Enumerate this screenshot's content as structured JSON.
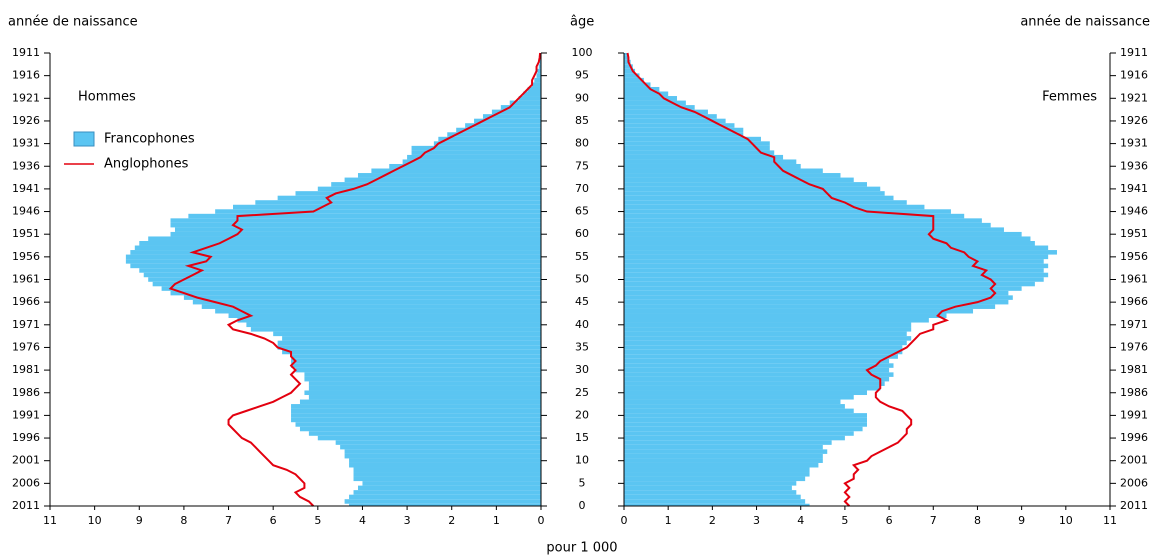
{
  "age_axis": {
    "title": "âge",
    "ticks": [
      0,
      5,
      10,
      15,
      20,
      25,
      30,
      35,
      40,
      45,
      50,
      55,
      60,
      65,
      70,
      75,
      80,
      85,
      90,
      95,
      100
    ]
  },
  "x_axis_title": "pour 1 000",
  "chart_data": [
    {
      "type": "pyramid",
      "direction": "left",
      "panel_label": "Hommes",
      "y_axis_title": "année de naissance",
      "legend": true,
      "xlim": [
        0,
        11
      ],
      "xticks": [
        0,
        1,
        2,
        3,
        4,
        5,
        6,
        7,
        8,
        9,
        10,
        11
      ],
      "ylim": [
        0,
        100
      ],
      "yticks": [
        {
          "value": 0,
          "label": "2011"
        },
        {
          "value": 5,
          "label": "2006"
        },
        {
          "value": 10,
          "label": "2001"
        },
        {
          "value": 15,
          "label": "1996"
        },
        {
          "value": 20,
          "label": "1991"
        },
        {
          "value": 25,
          "label": "1986"
        },
        {
          "value": 30,
          "label": "1981"
        },
        {
          "value": 35,
          "label": "1976"
        },
        {
          "value": 40,
          "label": "1971"
        },
        {
          "value": 45,
          "label": "1966"
        },
        {
          "value": 50,
          "label": "1961"
        },
        {
          "value": 55,
          "label": "1956"
        },
        {
          "value": 60,
          "label": "1951"
        },
        {
          "value": 65,
          "label": "1946"
        },
        {
          "value": 70,
          "label": "1941"
        },
        {
          "value": 75,
          "label": "1936"
        },
        {
          "value": 80,
          "label": "1931"
        },
        {
          "value": 85,
          "label": "1926"
        },
        {
          "value": 90,
          "label": "1921"
        },
        {
          "value": 95,
          "label": "1916"
        },
        {
          "value": 100,
          "label": "1911"
        }
      ],
      "y": [
        0,
        1,
        2,
        3,
        4,
        5,
        6,
        7,
        8,
        9,
        10,
        11,
        12,
        13,
        14,
        15,
        16,
        17,
        18,
        19,
        20,
        21,
        22,
        23,
        24,
        25,
        26,
        27,
        28,
        29,
        30,
        31,
        32,
        33,
        34,
        35,
        36,
        37,
        38,
        39,
        40,
        41,
        42,
        43,
        44,
        45,
        46,
        47,
        48,
        49,
        50,
        51,
        52,
        53,
        54,
        55,
        56,
        57,
        58,
        59,
        60,
        61,
        62,
        63,
        64,
        65,
        66,
        67,
        68,
        69,
        70,
        71,
        72,
        73,
        74,
        75,
        76,
        77,
        78,
        79,
        80,
        81,
        82,
        83,
        84,
        85,
        86,
        87,
        88,
        89,
        90,
        91,
        92,
        93,
        94,
        95,
        96,
        97,
        98,
        99,
        100
      ],
      "series": [
        {
          "name": "Francophones",
          "style": "area",
          "color": "#5bc5f2",
          "values": [
            4.3,
            4.4,
            4.3,
            4.2,
            4.1,
            4.0,
            4.2,
            4.2,
            4.2,
            4.3,
            4.3,
            4.4,
            4.4,
            4.5,
            4.6,
            5.0,
            5.2,
            5.4,
            5.5,
            5.6,
            5.6,
            5.6,
            5.6,
            5.4,
            5.2,
            5.3,
            5.2,
            5.2,
            5.3,
            5.3,
            5.5,
            5.6,
            5.6,
            5.6,
            5.8,
            5.9,
            5.9,
            5.8,
            6.0,
            6.5,
            6.6,
            6.8,
            7.0,
            7.3,
            7.6,
            7.8,
            8.0,
            8.3,
            8.5,
            8.7,
            8.8,
            8.9,
            9.0,
            9.2,
            9.3,
            9.3,
            9.2,
            9.1,
            9.0,
            8.8,
            8.3,
            8.2,
            8.3,
            8.3,
            7.9,
            7.3,
            6.9,
            6.4,
            5.9,
            5.5,
            5.0,
            4.7,
            4.4,
            4.1,
            3.8,
            3.4,
            3.1,
            3.0,
            2.9,
            2.9,
            2.4,
            2.3,
            2.1,
            1.9,
            1.7,
            1.5,
            1.3,
            1.1,
            0.9,
            0.7,
            0.5,
            0.4,
            0.3,
            0.2,
            0.15,
            0.1,
            0.08,
            0.05,
            0.03,
            0.02,
            0.02
          ]
        },
        {
          "name": "Anglophones",
          "style": "line",
          "color": "#e3000f",
          "values": [
            5.1,
            5.2,
            5.4,
            5.5,
            5.3,
            5.3,
            5.4,
            5.5,
            5.7,
            6.0,
            6.1,
            6.2,
            6.3,
            6.4,
            6.5,
            6.7,
            6.8,
            6.9,
            7.0,
            7.0,
            6.9,
            6.6,
            6.3,
            6.0,
            5.8,
            5.6,
            5.5,
            5.4,
            5.5,
            5.6,
            5.5,
            5.6,
            5.5,
            5.6,
            5.6,
            5.9,
            6.0,
            6.2,
            6.5,
            6.9,
            7.0,
            6.8,
            6.5,
            6.7,
            6.9,
            7.3,
            7.7,
            8.0,
            8.3,
            8.2,
            8.0,
            7.8,
            7.6,
            7.9,
            7.5,
            7.4,
            7.8,
            7.5,
            7.2,
            7.0,
            6.8,
            6.7,
            6.9,
            6.8,
            6.8,
            5.1,
            4.9,
            4.7,
            4.8,
            4.6,
            4.2,
            3.9,
            3.7,
            3.5,
            3.3,
            3.1,
            2.9,
            2.7,
            2.6,
            2.4,
            2.3,
            2.1,
            1.9,
            1.7,
            1.5,
            1.3,
            1.1,
            0.9,
            0.7,
            0.6,
            0.5,
            0.4,
            0.3,
            0.2,
            0.2,
            0.15,
            0.1,
            0.1,
            0.05,
            0.03,
            0.02
          ]
        }
      ]
    },
    {
      "type": "pyramid",
      "direction": "right",
      "panel_label": "Femmes",
      "y_axis_title": "année de naissance",
      "legend": false,
      "xlim": [
        0,
        11
      ],
      "xticks": [
        0,
        1,
        2,
        3,
        4,
        5,
        6,
        7,
        8,
        9,
        10,
        11
      ],
      "ylim": [
        0,
        100
      ],
      "yticks": [
        {
          "value": 0,
          "label": "2011"
        },
        {
          "value": 5,
          "label": "2006"
        },
        {
          "value": 10,
          "label": "2001"
        },
        {
          "value": 15,
          "label": "1996"
        },
        {
          "value": 20,
          "label": "1991"
        },
        {
          "value": 25,
          "label": "1986"
        },
        {
          "value": 30,
          "label": "1981"
        },
        {
          "value": 35,
          "label": "1976"
        },
        {
          "value": 40,
          "label": "1971"
        },
        {
          "value": 45,
          "label": "1966"
        },
        {
          "value": 50,
          "label": "1961"
        },
        {
          "value": 55,
          "label": "1956"
        },
        {
          "value": 60,
          "label": "1951"
        },
        {
          "value": 65,
          "label": "1946"
        },
        {
          "value": 70,
          "label": "1941"
        },
        {
          "value": 75,
          "label": "1936"
        },
        {
          "value": 80,
          "label": "1931"
        },
        {
          "value": 85,
          "label": "1926"
        },
        {
          "value": 90,
          "label": "1921"
        },
        {
          "value": 95,
          "label": "1916"
        },
        {
          "value": 100,
          "label": "1911"
        }
      ],
      "y": [
        0,
        1,
        2,
        3,
        4,
        5,
        6,
        7,
        8,
        9,
        10,
        11,
        12,
        13,
        14,
        15,
        16,
        17,
        18,
        19,
        20,
        21,
        22,
        23,
        24,
        25,
        26,
        27,
        28,
        29,
        30,
        31,
        32,
        33,
        34,
        35,
        36,
        37,
        38,
        39,
        40,
        41,
        42,
        43,
        44,
        45,
        46,
        47,
        48,
        49,
        50,
        51,
        52,
        53,
        54,
        55,
        56,
        57,
        58,
        59,
        60,
        61,
        62,
        63,
        64,
        65,
        66,
        67,
        68,
        69,
        70,
        71,
        72,
        73,
        74,
        75,
        76,
        77,
        78,
        79,
        80,
        81,
        82,
        83,
        84,
        85,
        86,
        87,
        88,
        89,
        90,
        91,
        92,
        93,
        94,
        95,
        96,
        97,
        98,
        99,
        100
      ],
      "series": [
        {
          "style": "area",
          "color": "#5bc5f2",
          "values": [
            4.2,
            4.1,
            4.0,
            3.9,
            3.8,
            3.9,
            4.1,
            4.2,
            4.2,
            4.4,
            4.5,
            4.5,
            4.6,
            4.5,
            4.7,
            5.0,
            5.2,
            5.4,
            5.5,
            5.5,
            5.5,
            5.2,
            5.0,
            4.9,
            5.2,
            5.5,
            5.8,
            5.9,
            6.0,
            6.1,
            6.0,
            6.1,
            6.0,
            6.2,
            6.3,
            6.3,
            6.4,
            6.5,
            6.4,
            6.5,
            6.5,
            6.9,
            7.3,
            7.9,
            8.4,
            8.7,
            8.8,
            8.7,
            9.0,
            9.3,
            9.5,
            9.6,
            9.5,
            9.6,
            9.5,
            9.6,
            9.8,
            9.6,
            9.3,
            9.2,
            9.0,
            8.6,
            8.3,
            8.1,
            7.7,
            7.4,
            6.8,
            6.4,
            6.1,
            5.9,
            5.8,
            5.5,
            5.2,
            4.9,
            4.5,
            4.0,
            3.9,
            3.6,
            3.4,
            3.3,
            3.3,
            3.1,
            2.7,
            2.7,
            2.5,
            2.3,
            2.1,
            1.9,
            1.6,
            1.4,
            1.2,
            1.0,
            0.8,
            0.6,
            0.45,
            0.35,
            0.25,
            0.2,
            0.15,
            0.1,
            0.1
          ]
        },
        {
          "style": "line",
          "color": "#e3000f",
          "values": [
            5.1,
            5.0,
            5.1,
            5.0,
            5.1,
            5.0,
            5.2,
            5.2,
            5.3,
            5.2,
            5.5,
            5.6,
            5.8,
            6.0,
            6.2,
            6.3,
            6.4,
            6.4,
            6.5,
            6.5,
            6.4,
            6.3,
            6.0,
            5.8,
            5.7,
            5.7,
            5.8,
            5.8,
            5.8,
            5.6,
            5.5,
            5.7,
            5.8,
            6.0,
            6.2,
            6.4,
            6.5,
            6.6,
            6.7,
            7.0,
            7.0,
            7.3,
            7.1,
            7.2,
            7.5,
            8.0,
            8.3,
            8.4,
            8.3,
            8.4,
            8.3,
            8.1,
            8.2,
            7.9,
            8.0,
            7.8,
            7.7,
            7.4,
            7.3,
            7.0,
            6.9,
            7.0,
            7.0,
            7.0,
            7.0,
            5.5,
            5.2,
            5.0,
            4.7,
            4.6,
            4.5,
            4.2,
            4.0,
            3.8,
            3.6,
            3.5,
            3.4,
            3.4,
            3.1,
            3.0,
            2.9,
            2.8,
            2.6,
            2.4,
            2.2,
            2.0,
            1.8,
            1.6,
            1.3,
            1.1,
            0.9,
            0.8,
            0.6,
            0.5,
            0.4,
            0.3,
            0.2,
            0.15,
            0.1,
            0.1,
            0.08
          ]
        }
      ]
    }
  ]
}
